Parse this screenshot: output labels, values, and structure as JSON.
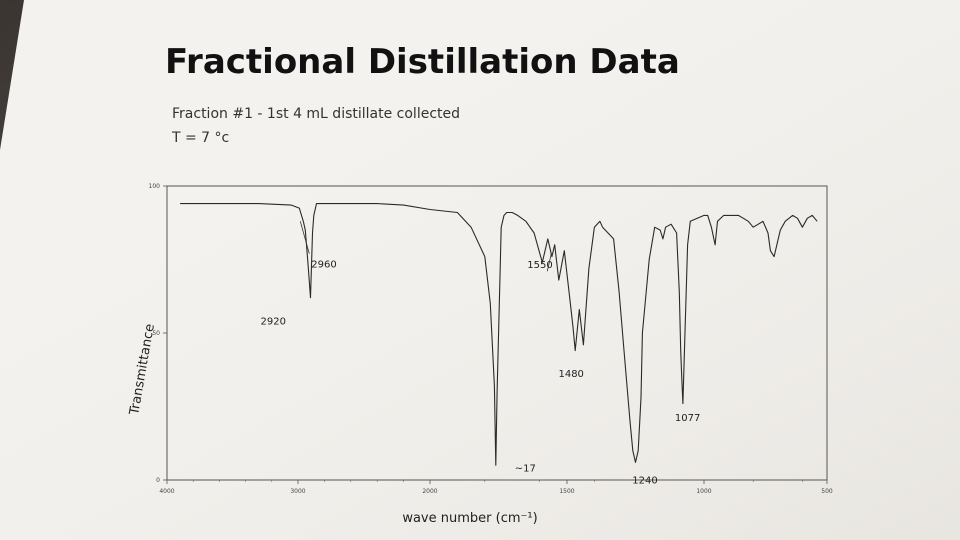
{
  "title": "Fractional Distillation Data",
  "subtitle": "Fraction #1 - 1st 4 mL distillate collected",
  "temp_line": "T = 7 °c",
  "colors": {
    "paper": "#f4f2ee",
    "ink": "#1f1f1f",
    "trace": "#2a2a2a",
    "frame": "#555555"
  },
  "chart_data": {
    "type": "line",
    "title": "",
    "xlabel": "wave number (cm⁻¹)",
    "ylabel": "Transmittance",
    "xlim": [
      4000,
      500
    ],
    "ylim": [
      0,
      100
    ],
    "x_ticks": [
      {
        "value": 4000,
        "label": "4000"
      },
      {
        "value": 3000,
        "label": "3000"
      },
      {
        "value": 2000,
        "label": "2000"
      },
      {
        "value": 1500,
        "label": "1500"
      },
      {
        "value": 1000,
        "label": "1000"
      },
      {
        "value": 500,
        "label": "500"
      }
    ],
    "y_ticks": [
      {
        "value": 0,
        "label": "0"
      },
      {
        "value": 50,
        "label": "50"
      },
      {
        "value": 100,
        "label": "100"
      }
    ],
    "grid": false,
    "series": [
      {
        "x": [
          3900,
          3600,
          3300,
          3050,
          2990,
          2960,
          2945,
          2925,
          2905,
          2890,
          2880,
          2860,
          2850,
          2700,
          2400,
          2200,
          2000,
          1900,
          1850,
          1800,
          1780,
          1765,
          1760,
          1755,
          1745,
          1740,
          1730,
          1720,
          1700,
          1680,
          1650,
          1620,
          1590,
          1570,
          1555,
          1545,
          1530,
          1510,
          1490,
          1478,
          1470,
          1455,
          1440,
          1420,
          1400,
          1380,
          1370,
          1330,
          1310,
          1290,
          1270,
          1260,
          1250,
          1240,
          1230,
          1225,
          1200,
          1180,
          1160,
          1150,
          1140,
          1120,
          1100,
          1090,
          1085,
          1080,
          1077,
          1070,
          1060,
          1050,
          1000,
          985,
          970,
          955,
          945,
          920,
          900,
          860,
          840,
          820,
          800,
          760,
          740,
          730,
          715,
          690,
          670,
          640,
          620,
          600,
          580,
          560,
          540
        ],
        "y": [
          94,
          94,
          94,
          93.5,
          92.5,
          88,
          85,
          74,
          62,
          84,
          90,
          94,
          94,
          94,
          94,
          93.5,
          92,
          91,
          86,
          76,
          60,
          32,
          5,
          30,
          68,
          86,
          90,
          91,
          91,
          90,
          88,
          84,
          74,
          82,
          76,
          80,
          68,
          78,
          62,
          52,
          44,
          58,
          46,
          72,
          86,
          88,
          86,
          82,
          64,
          42,
          20,
          10,
          6,
          10,
          28,
          50,
          75,
          86,
          85,
          82,
          86,
          87,
          84,
          64,
          44,
          32,
          26,
          48,
          80,
          88,
          90,
          90,
          86,
          80,
          88,
          90,
          90,
          90,
          89,
          88,
          86,
          88,
          84,
          78,
          76,
          85,
          88,
          90,
          89,
          86,
          89,
          90,
          88
        ]
      }
    ],
    "annotations": [
      {
        "x": 2920,
        "y": 57,
        "text": "2920"
      },
      {
        "x": 2960,
        "y": 75,
        "text": "2960"
      },
      {
        "x": 1550,
        "y": 70,
        "text": "1550"
      },
      {
        "x": 1480,
        "y": 35,
        "text": "1480"
      },
      {
        "x": 1077,
        "y": 20,
        "text": "1077"
      },
      {
        "x": 1720,
        "y": 5,
        "text": "~17"
      },
      {
        "x": 1240,
        "y": 5,
        "text": "1240"
      }
    ]
  }
}
